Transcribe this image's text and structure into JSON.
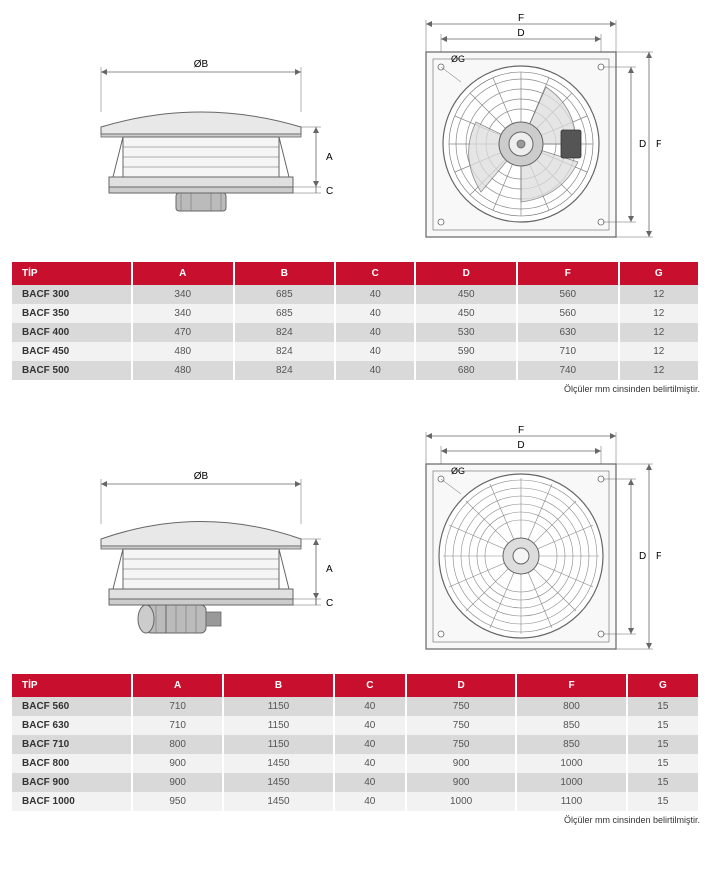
{
  "colors": {
    "header_bg": "#c8102e",
    "row_light": "#f2f2f2",
    "row_dark": "#d9d9d9",
    "stroke": "#666666",
    "fill_light": "#f5f5f5",
    "fill_med": "#cccccc"
  },
  "dim_labels": {
    "ob": "ØB",
    "og": "ØG",
    "a": "A",
    "c": "C",
    "d": "D",
    "f": "F"
  },
  "table1": {
    "columns": [
      "TİP",
      "A",
      "B",
      "C",
      "D",
      "F",
      "G"
    ],
    "rows": [
      [
        "BACF 300",
        "340",
        "685",
        "40",
        "450",
        "560",
        "12"
      ],
      [
        "BACF 350",
        "340",
        "685",
        "40",
        "450",
        "560",
        "12"
      ],
      [
        "BACF 400",
        "470",
        "824",
        "40",
        "530",
        "630",
        "12"
      ],
      [
        "BACF 450",
        "480",
        "824",
        "40",
        "590",
        "710",
        "12"
      ],
      [
        "BACF 500",
        "480",
        "824",
        "40",
        "680",
        "740",
        "12"
      ]
    ],
    "footnote": "Ölçüler mm cinsinden belirtilmiştir."
  },
  "table2": {
    "columns": [
      "TİP",
      "A",
      "B",
      "C",
      "D",
      "F",
      "G"
    ],
    "rows": [
      [
        "BACF 560",
        "710",
        "1150",
        "40",
        "750",
        "800",
        "15"
      ],
      [
        "BACF 630",
        "710",
        "1150",
        "40",
        "750",
        "850",
        "15"
      ],
      [
        "BACF 710",
        "800",
        "1150",
        "40",
        "750",
        "850",
        "15"
      ],
      [
        "BACF 800",
        "900",
        "1450",
        "40",
        "900",
        "1000",
        "15"
      ],
      [
        "BACF 900",
        "900",
        "1450",
        "40",
        "900",
        "1000",
        "15"
      ],
      [
        "BACF 1000",
        "950",
        "1450",
        "40",
        "1000",
        "1100",
        "15"
      ]
    ],
    "footnote": "Ölçüler mm cinsinden belirtilmiştir."
  }
}
